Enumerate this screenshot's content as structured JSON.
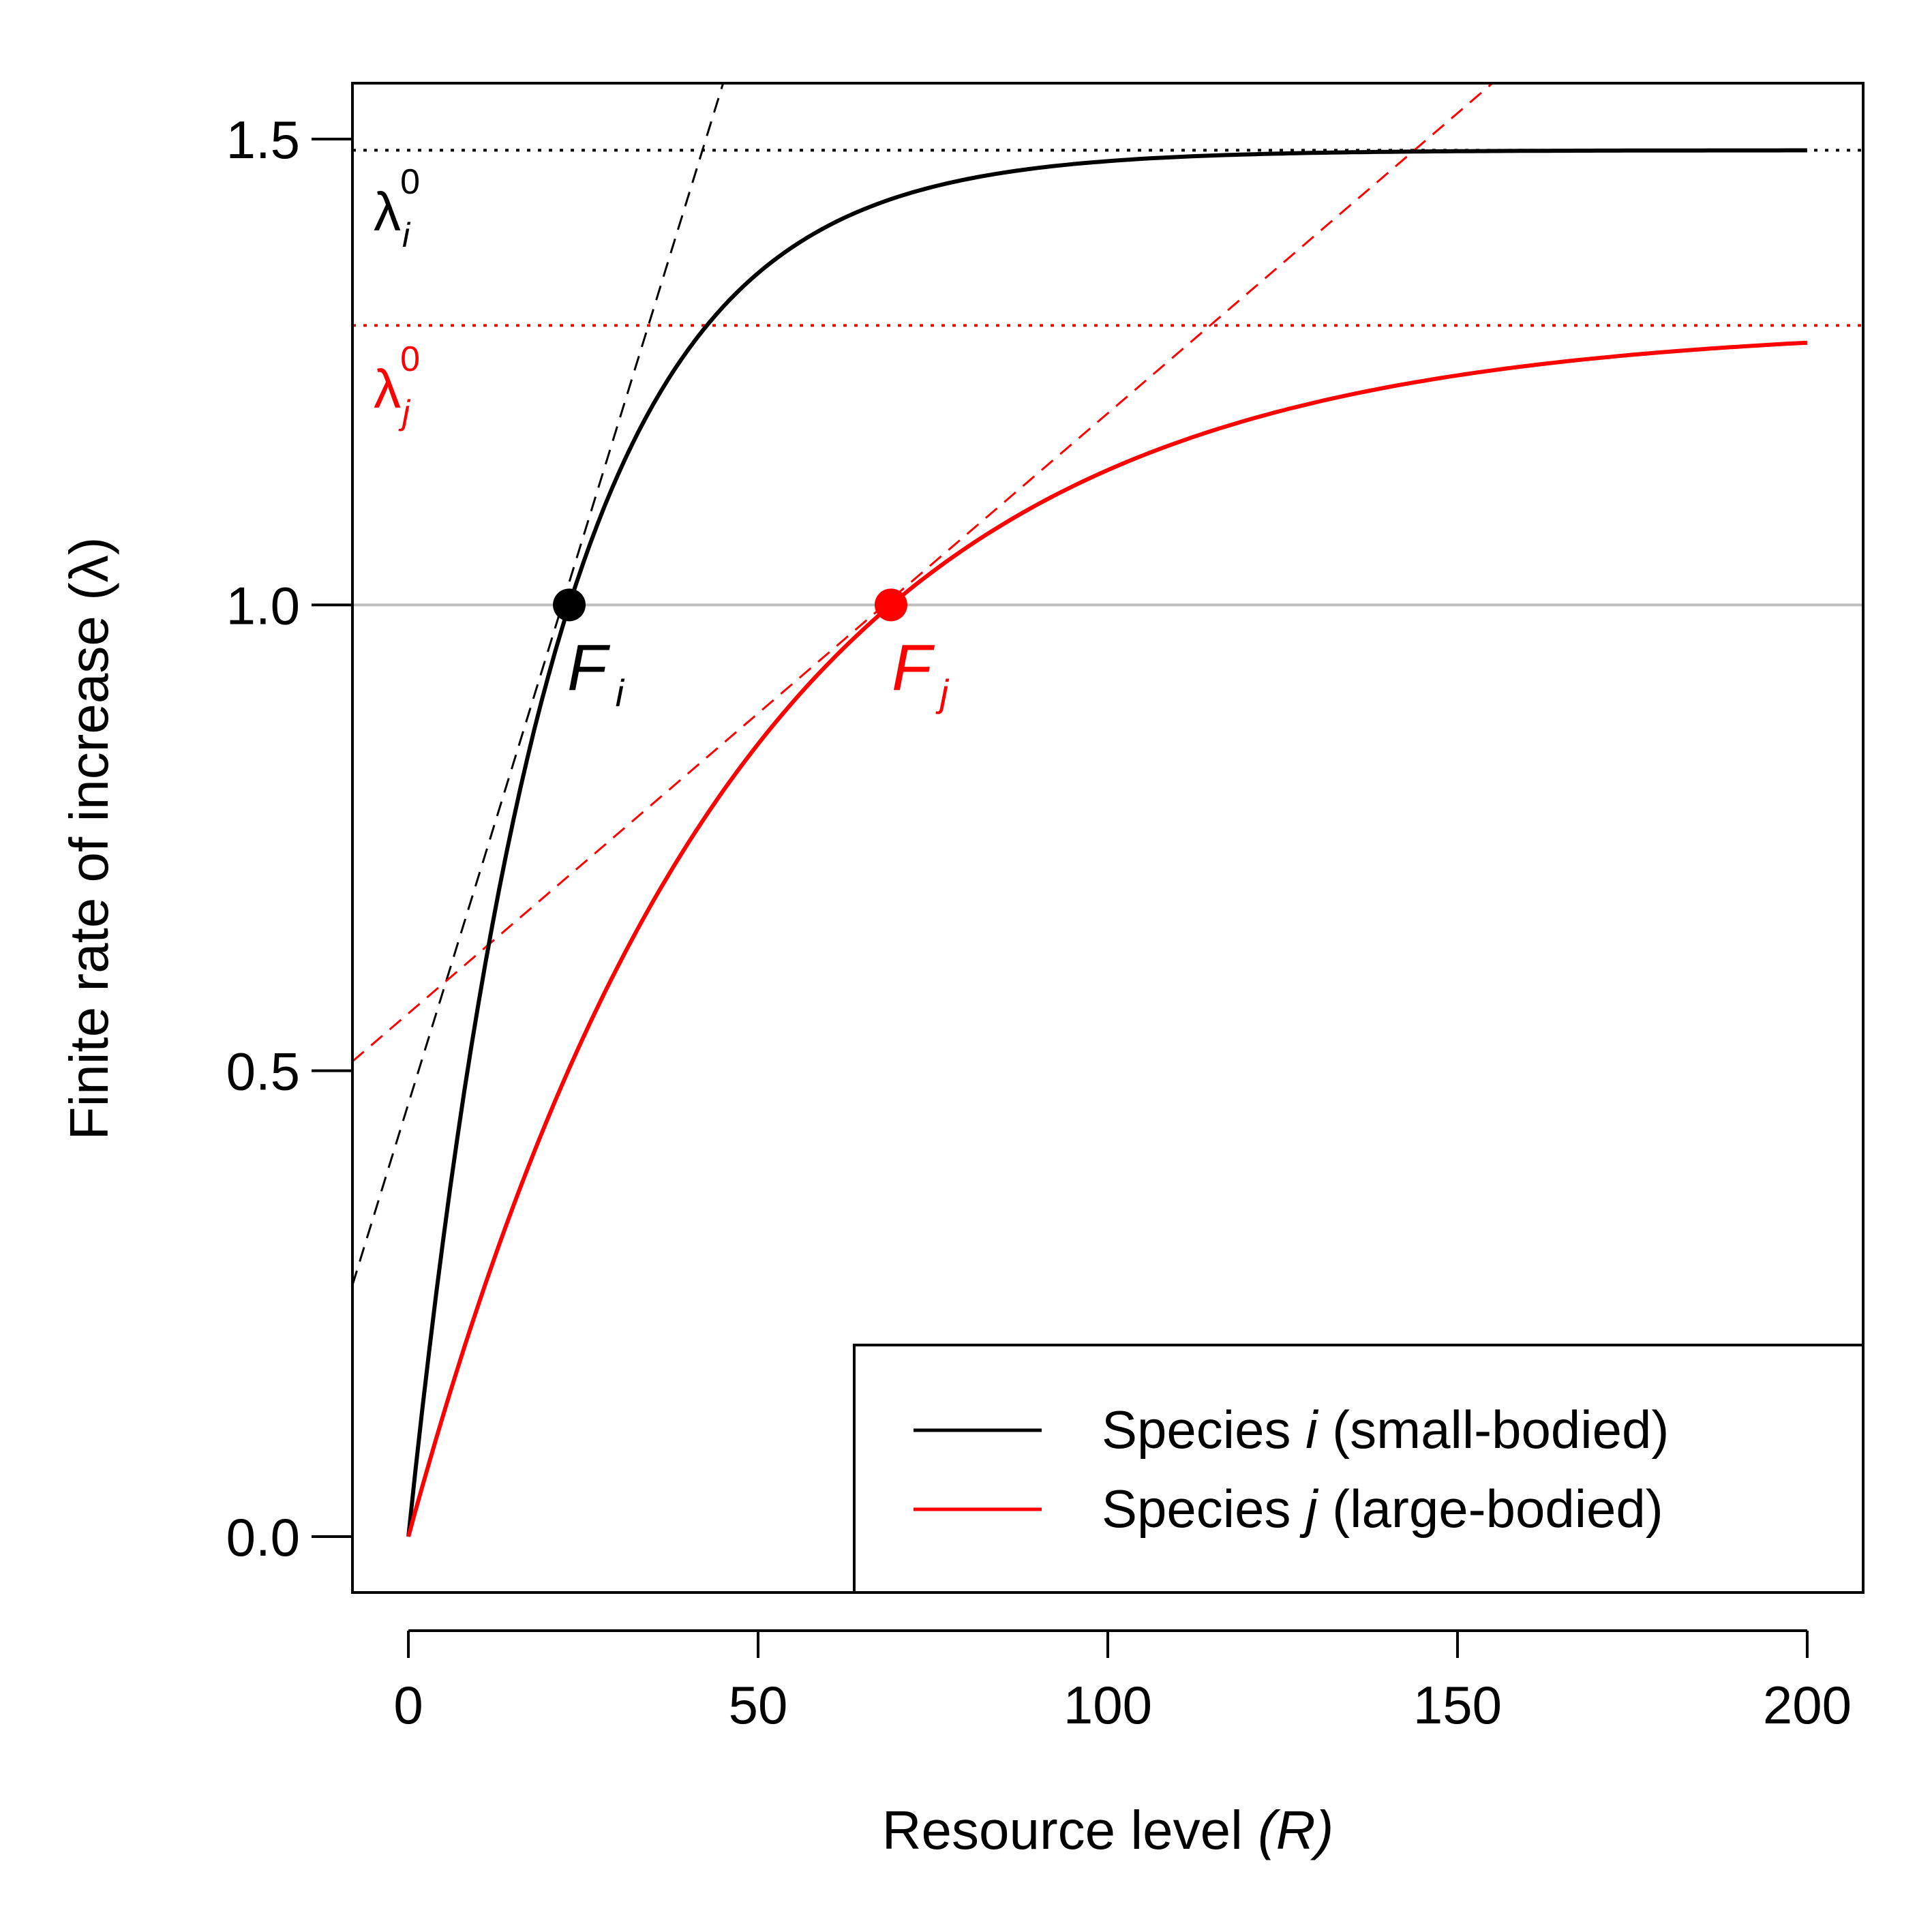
{
  "chart_data": {
    "type": "line",
    "xlabel": "Resource level ",
    "xlabel_italic": "(R)",
    "ylabel": "Finite rate of increase (λ)",
    "xlim": [
      -8,
      208
    ],
    "ylim": [
      -0.06,
      1.56
    ],
    "x_ticks": [
      0,
      50,
      100,
      150,
      200
    ],
    "x_tick_labels": [
      "0",
      "50",
      "100",
      "150",
      "200"
    ],
    "y_ticks": [
      0.0,
      0.5,
      1.0,
      1.5
    ],
    "y_tick_labels": [
      "0.0",
      "0.5",
      "1.0",
      "1.5"
    ],
    "grid": false,
    "reference_line": {
      "y": 1.0,
      "color": "#bebebe"
    },
    "series": [
      {
        "name": "Species i (small-bodied)",
        "color": "#000000",
        "asymptote": 1.488,
        "x": [
          0,
          5,
          10,
          15,
          20,
          23,
          25,
          30,
          35,
          40,
          45,
          50,
          60,
          70,
          80,
          90,
          100,
          120,
          140,
          160,
          180,
          200
        ],
        "y": [
          0.0,
          0.36,
          0.64,
          0.85,
          0.99,
          1.0,
          1.11,
          1.23,
          1.3,
          1.35,
          1.39,
          1.42,
          1.45,
          1.47,
          1.478,
          1.483,
          1.485,
          1.487,
          1.488,
          1.488,
          1.488,
          1.488
        ]
      },
      {
        "name": "Species j (large-bodied)",
        "color": "#ff0000",
        "asymptote": 1.3,
        "x": [
          0,
          10,
          20,
          30,
          40,
          50,
          60,
          70,
          80,
          90,
          100,
          120,
          140,
          160,
          180,
          200
        ],
        "y": [
          0.0,
          0.25,
          0.46,
          0.62,
          0.77,
          0.88,
          0.95,
          1.0,
          1.06,
          1.11,
          1.15,
          1.2,
          1.235,
          1.255,
          1.268,
          1.28
        ]
      }
    ],
    "tangents": [
      {
        "series": "Species i (small-bodied)",
        "color": "#000000",
        "x": [
          -8,
          45
        ],
        "y": [
          0.27,
          1.56
        ]
      },
      {
        "series": "Species j (large-bodied)",
        "color": "#ff0000",
        "x": [
          -8,
          155
        ],
        "y": [
          0.51,
          1.56
        ]
      }
    ],
    "asymptote_lines": [
      {
        "y": 1.488,
        "color": "#000000"
      },
      {
        "y": 1.3,
        "color": "#ff0000"
      }
    ],
    "points": [
      {
        "label": "F",
        "subscript": "i",
        "x": 23,
        "y": 1.0,
        "color": "#000000"
      },
      {
        "label": "F",
        "subscript": "j",
        "x": 69,
        "y": 1.0,
        "color": "#ff0000"
      }
    ],
    "lambda_labels": [
      {
        "symbol": "λ",
        "superscript": "0",
        "subscript": "i",
        "color": "#000000"
      },
      {
        "symbol": "λ",
        "superscript": "0",
        "subscript": "j",
        "color": "#ff0000"
      }
    ],
    "legend": {
      "placement": "bottom-right",
      "entries": [
        {
          "prefix": "Species ",
          "italic": "i",
          "suffix": " (small-bodied)",
          "color": "#000000"
        },
        {
          "prefix": "Species ",
          "italic": "j",
          "suffix": " (large-bodied)",
          "color": "#ff0000"
        }
      ]
    }
  }
}
